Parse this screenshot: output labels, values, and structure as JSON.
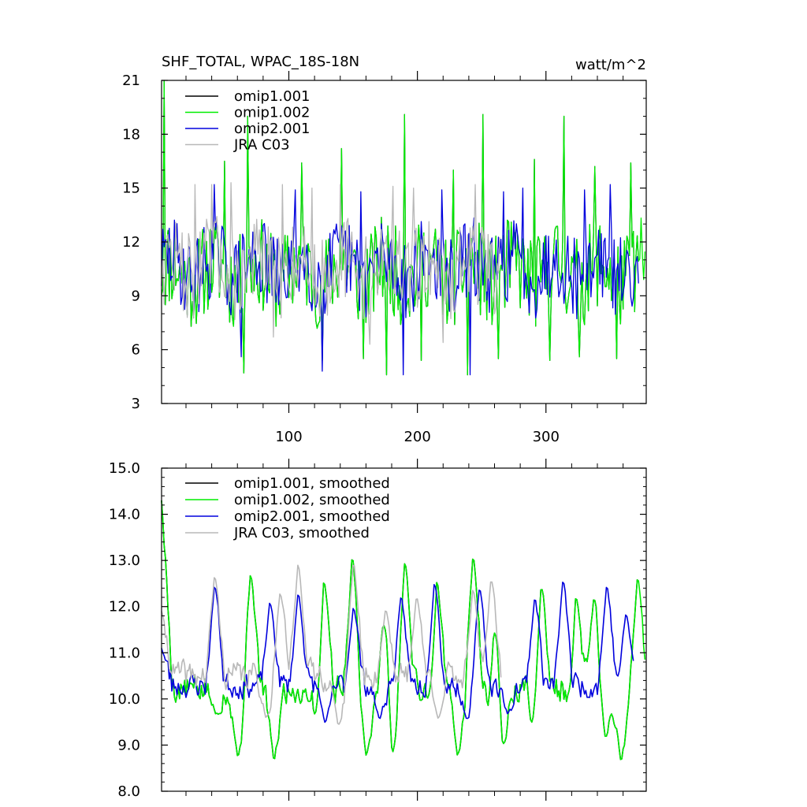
{
  "chart_data": [
    {
      "type": "line",
      "title": "SHF_TOTAL, WPAC_18S-18N",
      "units": "watt/m^2",
      "xlabel": "",
      "ylabel": "",
      "xlim": [
        1,
        378
      ],
      "ylim": [
        3,
        21
      ],
      "xticks": [
        100,
        200,
        300
      ],
      "xtick_labels": [
        "100",
        "200",
        "300"
      ],
      "yticks": [
        3,
        6,
        9,
        12,
        15,
        18,
        21
      ],
      "ytick_labels": [
        "3",
        "6",
        "9",
        "12",
        "15",
        "18",
        "21"
      ],
      "legend_position": "top-left",
      "series": [
        {
          "name": "omip1.001",
          "color": "#000000",
          "length": 372,
          "base": 10.3,
          "amp": 2.6,
          "seed": 11,
          "spikes": [
            [
              3,
              21.0
            ],
            [
              50,
              16.5
            ],
            [
              65,
              4.7
            ],
            [
              68,
              19.0
            ],
            [
              110,
              16.4
            ],
            [
              126,
              5.4
            ],
            [
              141,
              17.2
            ],
            [
              158,
              5.5
            ],
            [
              176,
              4.6
            ],
            [
              190,
              19.1
            ],
            [
              203,
              5.4
            ],
            [
              228,
              16.0
            ],
            [
              239,
              4.6
            ],
            [
              251,
              19.1
            ],
            [
              263,
              5.5
            ],
            [
              291,
              16.6
            ],
            [
              303,
              5.4
            ],
            [
              314,
              19.0
            ],
            [
              326,
              5.6
            ],
            [
              338,
              16.2
            ],
            [
              355,
              5.5
            ],
            [
              366,
              16.4
            ]
          ]
        },
        {
          "name": "omip1.002",
          "color": "#00ee00",
          "length": 377,
          "base": 10.3,
          "amp": 2.6,
          "seed": 11,
          "spikes": [
            [
              3,
              21.0
            ],
            [
              50,
              16.5
            ],
            [
              65,
              4.7
            ],
            [
              68,
              19.0
            ],
            [
              110,
              16.4
            ],
            [
              126,
              5.4
            ],
            [
              141,
              17.2
            ],
            [
              158,
              5.5
            ],
            [
              176,
              4.6
            ],
            [
              190,
              19.1
            ],
            [
              203,
              5.4
            ],
            [
              228,
              16.0
            ],
            [
              239,
              4.6
            ],
            [
              251,
              19.1
            ],
            [
              263,
              5.5
            ],
            [
              291,
              16.6
            ],
            [
              303,
              5.4
            ],
            [
              314,
              19.0
            ],
            [
              326,
              5.6
            ],
            [
              338,
              16.2
            ],
            [
              355,
              5.5
            ],
            [
              366,
              16.4
            ]
          ]
        },
        {
          "name": "omip2.001",
          "color": "#0000dd",
          "length": 372,
          "base": 10.6,
          "amp": 2.3,
          "seed": 29,
          "spikes": [
            [
              42,
              15.2
            ],
            [
              63,
              5.6
            ],
            [
              105,
              14.9
            ],
            [
              126,
              4.8
            ],
            [
              156,
              14.8
            ],
            [
              189,
              4.6
            ],
            [
              219,
              14.9
            ],
            [
              241,
              4.6
            ],
            [
              267,
              14.8
            ],
            [
              282,
              15.0
            ],
            [
              330,
              14.9
            ],
            [
              350,
              15.2
            ]
          ]
        },
        {
          "name": "JRA C03",
          "color": "#b8b8b8",
          "length": 264,
          "base": 10.6,
          "amp": 2.4,
          "seed": 47,
          "spikes": [
            [
              27,
              15.2
            ],
            [
              40,
              15.2
            ],
            [
              55,
              15.3
            ],
            [
              88,
              6.7
            ],
            [
              95,
              15.2
            ],
            [
              118,
              15.0
            ],
            [
              140,
              15.2
            ],
            [
              163,
              6.3
            ],
            [
              181,
              15.1
            ],
            [
              197,
              15.0
            ],
            [
              220,
              6.4
            ],
            [
              245,
              15.2
            ]
          ]
        }
      ]
    },
    {
      "type": "line",
      "title": "",
      "xlabel": "",
      "ylabel": "",
      "xlim": [
        1,
        378
      ],
      "ylim": [
        8.0,
        15.0
      ],
      "xticks": [
        100,
        200,
        300
      ],
      "xtick_labels": [],
      "yticks": [
        8.0,
        9.0,
        10.0,
        11.0,
        12.0,
        13.0,
        14.0,
        15.0
      ],
      "ytick_labels": [
        "8.0",
        "9.0",
        "10.0",
        "11.0",
        "12.0",
        "13.0",
        "14.0",
        "15.0"
      ],
      "legend_position": "top-left",
      "series": [
        {
          "name": "omip1.001, smoothed",
          "color": "#000000",
          "length": 372,
          "base": 10.2,
          "amp": 0.9,
          "seed": 5,
          "start": 14.3,
          "peaks": [
            [
              70,
              13.0
            ],
            [
              127,
              13.0
            ],
            [
              149,
              13.4
            ],
            [
              176,
              13.1
            ],
            [
              190,
              13.3
            ],
            [
              215,
              13.0
            ],
            [
              243,
              13.4
            ],
            [
              262,
              12.8
            ],
            [
              296,
              12.8
            ],
            [
              323,
              12.6
            ],
            [
              337,
              12.4
            ],
            [
              371,
              12.9
            ]
          ],
          "troughs": [
            [
              43,
              9.6
            ],
            [
              60,
              8.6
            ],
            [
              88,
              8.5
            ],
            [
              124,
              8.6
            ],
            [
              160,
              8.6
            ],
            [
              180,
              8.5
            ],
            [
              214,
              8.6
            ],
            [
              231,
              8.6
            ],
            [
              266,
              8.7
            ],
            [
              292,
              8.8
            ],
            [
              321,
              8.5
            ],
            [
              346,
              9.0
            ],
            [
              358,
              8.5
            ]
          ]
        },
        {
          "name": "omip1.002, smoothed",
          "color": "#00ee00",
          "length": 377,
          "base": 10.2,
          "amp": 0.9,
          "seed": 5,
          "start": 14.3,
          "peaks": [
            [
              70,
              13.0
            ],
            [
              127,
              13.0
            ],
            [
              149,
              13.4
            ],
            [
              176,
              13.1
            ],
            [
              190,
              13.3
            ],
            [
              215,
              13.0
            ],
            [
              243,
              13.4
            ],
            [
              262,
              12.8
            ],
            [
              296,
              12.8
            ],
            [
              323,
              12.6
            ],
            [
              337,
              12.4
            ],
            [
              371,
              12.9
            ]
          ],
          "troughs": [
            [
              43,
              9.6
            ],
            [
              60,
              8.6
            ],
            [
              88,
              8.5
            ],
            [
              124,
              8.6
            ],
            [
              160,
              8.6
            ],
            [
              180,
              8.5
            ],
            [
              214,
              8.6
            ],
            [
              231,
              8.6
            ],
            [
              266,
              8.7
            ],
            [
              292,
              8.8
            ],
            [
              321,
              8.5
            ],
            [
              346,
              9.0
            ],
            [
              358,
              8.5
            ]
          ]
        },
        {
          "name": "omip2.001, smoothed",
          "color": "#0000dd",
          "length": 368,
          "base": 10.3,
          "amp": 0.7,
          "seed": 23,
          "start": 11.1,
          "peaks": [
            [
              42,
              12.7
            ],
            [
              85,
              12.3
            ],
            [
              107,
              12.5
            ],
            [
              150,
              12.2
            ],
            [
              187,
              12.4
            ],
            [
              213,
              12.8
            ],
            [
              248,
              12.6
            ],
            [
              291,
              12.4
            ],
            [
              313,
              12.8
            ],
            [
              347,
              12.7
            ],
            [
              362,
              12.0
            ]
          ],
          "troughs": [
            [
              128,
              9.4
            ],
            [
              170,
              9.5
            ],
            [
              238,
              9.5
            ],
            [
              270,
              9.6
            ]
          ]
        },
        {
          "name": "JRA C03, smoothed",
          "color": "#b8b8b8",
          "length": 265,
          "base": 10.5,
          "amp": 0.8,
          "seed": 41,
          "start": 11.9,
          "peaks": [
            [
              42,
              12.9
            ],
            [
              93,
              12.5
            ],
            [
              107,
              13.2
            ],
            [
              150,
              13.2
            ],
            [
              175,
              12.1
            ],
            [
              199,
              12.4
            ],
            [
              243,
              12.6
            ],
            [
              257,
              12.8
            ]
          ],
          "troughs": [
            [
              82,
              9.5
            ],
            [
              138,
              9.3
            ],
            [
              216,
              9.5
            ]
          ]
        }
      ]
    }
  ]
}
